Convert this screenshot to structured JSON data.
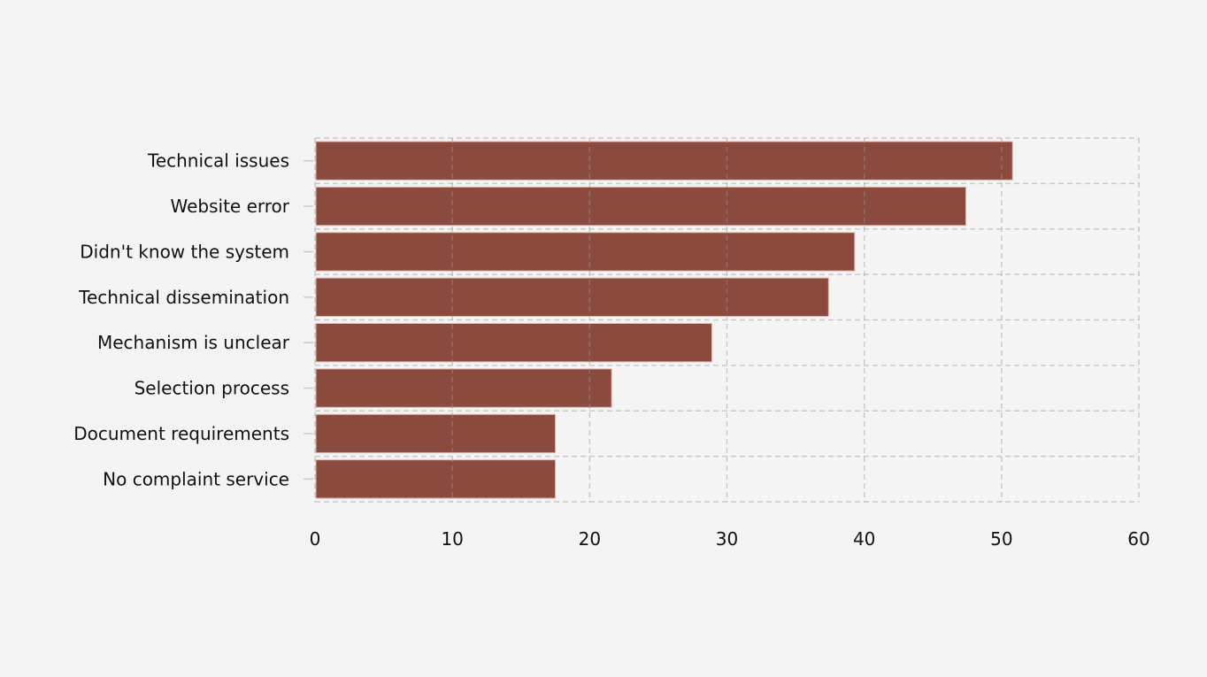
{
  "chart_data": {
    "type": "bar",
    "orientation": "horizontal",
    "categories": [
      "Technical issues",
      "Website error",
      "Didn't know the system",
      "Technical dissemination",
      "Mechanism is unclear",
      "Selection process",
      "Document requirements",
      "No complaint service"
    ],
    "values": [
      50.8,
      47.4,
      39.3,
      37.4,
      28.9,
      21.6,
      17.5,
      17.5
    ],
    "title": "",
    "xlabel": "",
    "ylabel": "",
    "xlim": [
      0,
      60
    ],
    "xticks": [
      "0",
      "10",
      "20",
      "30",
      "40",
      "50",
      "60"
    ],
    "grid": true,
    "bar_color": "#8b4a3e",
    "background": "#f4f4f4"
  }
}
